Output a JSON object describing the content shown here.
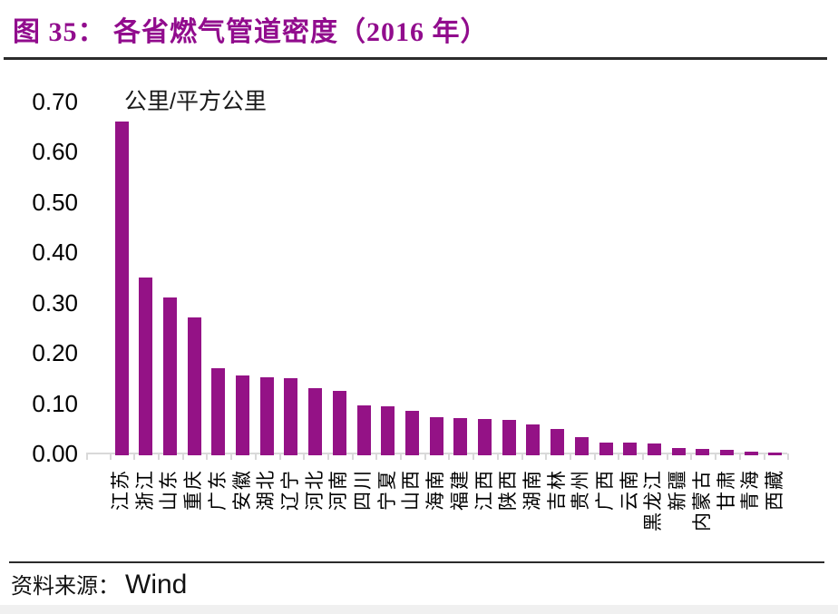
{
  "header": {
    "title": "图 35： 各省燃气管道密度（2016 年）"
  },
  "footer": {
    "source_prefix": "资料来源：",
    "source_name": "Wind"
  },
  "colors": {
    "title": "#910C8D",
    "bar": "#941286",
    "axis": "#D9D9D9",
    "rule": "#2B2B2B",
    "text": "#000000",
    "bottom_strip": "#F0F0F0"
  },
  "chart_data": {
    "type": "bar",
    "title": "各省燃气管道密度（2016 年）",
    "unit_label": "公里/平方公里",
    "xlabel": "",
    "ylabel": "公里/平方公里",
    "ylim": [
      0,
      0.7
    ],
    "ytick_labels": [
      "0.70",
      "0.60",
      "0.50",
      "0.40",
      "0.30",
      "0.20",
      "0.10",
      "0.00"
    ],
    "grid": false,
    "legend": false,
    "categories": [
      "江苏",
      "浙江",
      "山东",
      "重庆",
      "广东",
      "安徽",
      "湖北",
      "辽宁",
      "河北",
      "河南",
      "四川",
      "宁夏",
      "山西",
      "海南",
      "福建",
      "江西",
      "陕西",
      "湖南",
      "吉林",
      "贵州",
      "广西",
      "云南",
      "黑龙江",
      "新疆",
      "内蒙古",
      "甘肃",
      "青海",
      "西藏"
    ],
    "values": [
      0.66,
      0.35,
      0.31,
      0.27,
      0.17,
      0.155,
      0.152,
      0.15,
      0.13,
      0.125,
      0.095,
      0.093,
      0.085,
      0.073,
      0.071,
      0.069,
      0.067,
      0.058,
      0.048,
      0.033,
      0.022,
      0.021,
      0.019,
      0.01,
      0.009,
      0.008,
      0.003,
      0.001
    ]
  }
}
